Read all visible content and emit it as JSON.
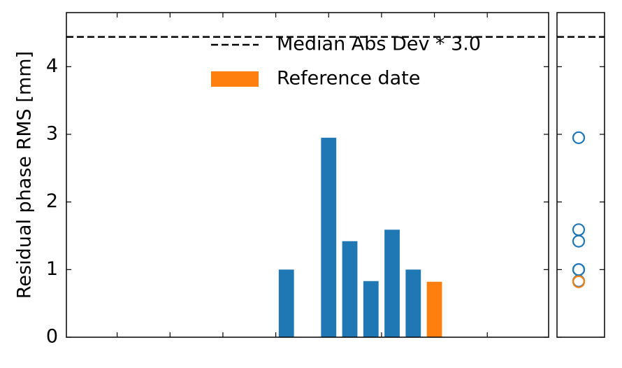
{
  "chart_data": [
    {
      "type": "bar",
      "y_label": "Residual phase RMS [mm]",
      "x": [
        0,
        2,
        3,
        4,
        5,
        6,
        7
      ],
      "values": [
        1.0,
        2.95,
        1.42,
        0.83,
        1.59,
        1.0,
        0.82
      ],
      "colors": [
        "#1f77b4",
        "#1f77b4",
        "#1f77b4",
        "#1f77b4",
        "#1f77b4",
        "#1f77b4",
        "#ff7f0e"
      ],
      "xlim": [
        -10.4,
        12.4
      ],
      "xticks": [
        -8,
        -5.5,
        -3,
        -0.5,
        2,
        4.5,
        7,
        9.5
      ],
      "ylim": [
        0,
        4.8
      ],
      "yticks": [
        0,
        1,
        2,
        3,
        4
      ],
      "threshold": {
        "name": "Median Abs Dev * 3.0",
        "value": 4.44,
        "color": "#000000"
      },
      "highlight": {
        "name": "Reference date",
        "color": "#ff7f0e"
      }
    },
    {
      "type": "scatter",
      "values": [
        1.0,
        2.95,
        1.42,
        0.83,
        1.59,
        1.0,
        0.82
      ],
      "colors": [
        "#1f77b4",
        "#1f77b4",
        "#1f77b4",
        "#1f77b4",
        "#1f77b4",
        "#1f77b4",
        "#ff7f0e"
      ],
      "ylim": [
        0,
        4.8
      ],
      "yticks": [
        0,
        1,
        2,
        3,
        4
      ],
      "threshold": {
        "value": 4.44,
        "color": "#000000"
      }
    }
  ]
}
